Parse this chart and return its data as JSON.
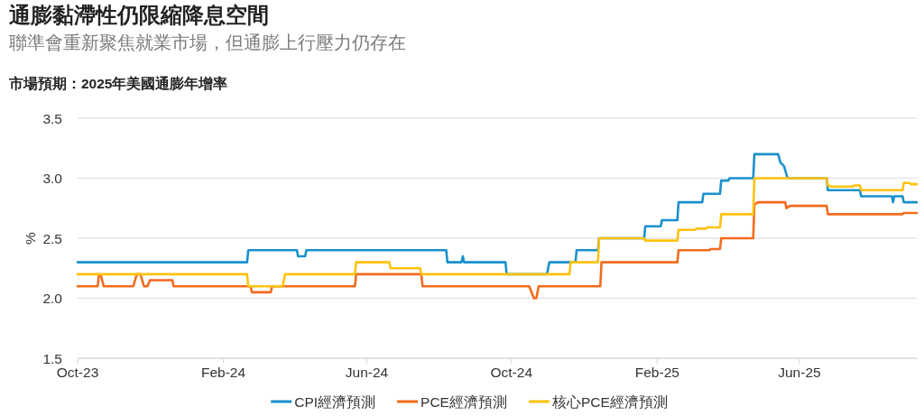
{
  "chart_data": {
    "type": "line",
    "title": "通膨黏滯性仍限縮降息空間",
    "subtitle": "聯準會重新聚焦就業市場，但通膨上行壓力仍存在",
    "annotations": [
      "市場預期：2025年美國通膨年增率"
    ],
    "ylabel": "%",
    "xlim": [
      "2023-10-01",
      "2025-09-08"
    ],
    "xticks": [
      {
        "value": "2023-10-01",
        "label": "Oct-23"
      },
      {
        "value": "2024-02-01",
        "label": "Feb-24"
      },
      {
        "value": "2024-06-01",
        "label": "Jun-24"
      },
      {
        "value": "2024-10-01",
        "label": "Oct-24"
      },
      {
        "value": "2025-02-01",
        "label": "Feb-25"
      },
      {
        "value": "2025-06-01",
        "label": "Jun-25"
      }
    ],
    "ylim": [
      1.5,
      3.5
    ],
    "yticks": [
      1.5,
      {
        "value": 2,
        "label": "2.0"
      },
      2.5,
      {
        "value": 3,
        "label": "3.0"
      },
      3.5
    ],
    "grid": "y",
    "legend": "bottom",
    "series": [
      {
        "name": "CPI經濟預測",
        "color": "#1a90cc",
        "x": [
          "2023-10-01",
          "2024-02-21",
          "2024-02-22",
          "2024-04-03",
          "2024-04-04",
          "2024-04-10",
          "2024-04-11",
          "2024-08-07",
          "2024-08-08",
          "2024-08-20",
          "2024-08-21",
          "2024-08-22",
          "2024-09-26",
          "2024-09-27",
          "2024-10-31",
          "2024-11-02",
          "2024-11-24",
          "2024-11-25",
          "2024-12-13",
          "2024-12-14",
          "2025-01-21",
          "2025-01-22",
          "2025-02-04",
          "2025-02-05",
          "2025-02-18",
          "2025-02-19",
          "2025-03-11",
          "2025-03-12",
          "2025-03-26",
          "2025-03-27",
          "2025-04-02",
          "2025-04-03",
          "2025-04-23",
          "2025-04-24",
          "2025-05-14",
          "2025-05-16",
          "2025-05-19",
          "2025-05-22",
          "2025-06-24",
          "2025-06-25",
          "2025-07-22",
          "2025-07-23",
          "2025-08-18",
          "2025-08-19",
          "2025-08-20",
          "2025-08-27",
          "2025-08-28",
          "2025-09-08"
        ],
        "values": [
          2.3,
          2.3,
          2.4,
          2.4,
          2.35,
          2.35,
          2.4,
          2.4,
          2.3,
          2.3,
          2.35,
          2.3,
          2.3,
          2.2,
          2.2,
          2.3,
          2.3,
          2.4,
          2.4,
          2.5,
          2.5,
          2.6,
          2.6,
          2.65,
          2.65,
          2.8,
          2.8,
          2.87,
          2.87,
          2.98,
          2.98,
          3.0,
          3.0,
          3.2,
          3.2,
          3.13,
          3.1,
          3.0,
          3.0,
          2.9,
          2.9,
          2.85,
          2.85,
          2.8,
          2.85,
          2.85,
          2.8,
          2.8
        ]
      },
      {
        "name": "PCE經濟預測",
        "color": "#f26b1d",
        "x": [
          "2023-10-01",
          "2023-10-18",
          "2023-10-19",
          "2023-10-21",
          "2023-10-23",
          "2023-11-17",
          "2023-11-20",
          "2023-11-23",
          "2023-11-26",
          "2023-11-29",
          "2023-12-01",
          "2023-12-20",
          "2023-12-21",
          "2024-02-24",
          "2024-02-25",
          "2024-03-12",
          "2024-03-13",
          "2024-05-22",
          "2024-05-23",
          "2024-07-17",
          "2024-07-18",
          "2024-10-16",
          "2024-10-20",
          "2024-10-22",
          "2024-10-24",
          "2024-12-15",
          "2024-12-16",
          "2025-02-18",
          "2025-02-19",
          "2025-03-17",
          "2025-03-18",
          "2025-03-26",
          "2025-03-27",
          "2025-04-23",
          "2025-04-24",
          "2025-04-27",
          "2025-05-20",
          "2025-05-21",
          "2025-05-24",
          "2025-06-24",
          "2025-06-25",
          "2025-08-27",
          "2025-08-28",
          "2025-09-08"
        ],
        "values": [
          2.1,
          2.1,
          2.2,
          2.18,
          2.1,
          2.1,
          2.2,
          2.2,
          2.1,
          2.1,
          2.15,
          2.15,
          2.1,
          2.1,
          2.05,
          2.05,
          2.1,
          2.1,
          2.2,
          2.2,
          2.1,
          2.1,
          2.0,
          2.0,
          2.1,
          2.1,
          2.3,
          2.3,
          2.4,
          2.4,
          2.41,
          2.41,
          2.5,
          2.5,
          2.78,
          2.8,
          2.8,
          2.75,
          2.77,
          2.77,
          2.7,
          2.7,
          2.71,
          2.71
        ]
      },
      {
        "name": "核心PCE經濟預測",
        "color": "#ffc20e",
        "x": [
          "2023-10-01",
          "2024-02-21",
          "2024-02-22",
          "2024-03-22",
          "2024-03-24",
          "2024-05-22",
          "2024-05-23",
          "2024-06-20",
          "2024-06-21",
          "2024-07-16",
          "2024-07-17",
          "2024-11-19",
          "2024-11-20",
          "2024-12-13",
          "2024-12-14",
          "2025-01-21",
          "2025-01-22",
          "2025-02-18",
          "2025-02-19",
          "2025-03-05",
          "2025-03-06",
          "2025-03-14",
          "2025-03-15",
          "2025-03-26",
          "2025-03-27",
          "2025-04-23",
          "2025-04-24",
          "2025-06-24",
          "2025-06-25",
          "2025-06-28",
          "2025-07-16",
          "2025-07-17",
          "2025-07-22",
          "2025-07-23",
          "2025-08-27",
          "2025-08-28",
          "2025-09-02",
          "2025-09-03",
          "2025-09-08"
        ],
        "values": [
          2.2,
          2.2,
          2.1,
          2.1,
          2.2,
          2.2,
          2.3,
          2.3,
          2.25,
          2.25,
          2.2,
          2.2,
          2.3,
          2.3,
          2.5,
          2.5,
          2.48,
          2.48,
          2.57,
          2.57,
          2.58,
          2.58,
          2.59,
          2.59,
          2.7,
          2.7,
          3.0,
          3.0,
          2.94,
          2.93,
          2.93,
          2.94,
          2.94,
          2.9,
          2.9,
          2.96,
          2.96,
          2.95,
          2.95
        ]
      }
    ]
  }
}
